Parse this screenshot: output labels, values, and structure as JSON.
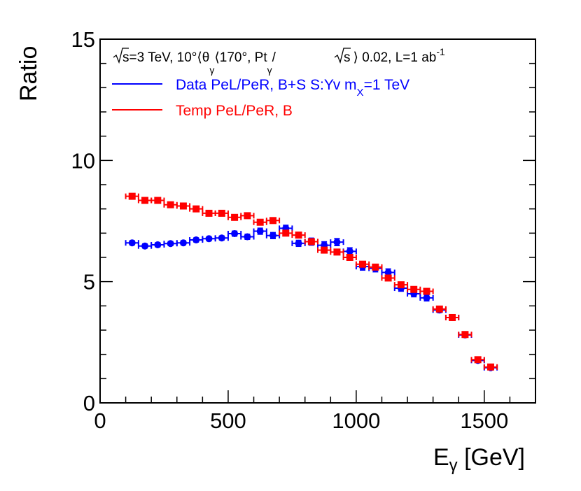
{
  "chart_data": {
    "type": "scatter",
    "xlabel_main": "E",
    "xlabel_sub": "γ",
    "xlabel_unit": " [GeV]",
    "ylabel": "Ratio",
    "xlim": [
      0,
      1700
    ],
    "ylim": [
      0,
      15
    ],
    "x_ticks": [
      {
        "value": 0,
        "label": "0"
      },
      {
        "value": 500,
        "label": "500"
      },
      {
        "value": 1000,
        "label": "1000"
      },
      {
        "value": 1500,
        "label": "1500"
      }
    ],
    "y_ticks": [
      {
        "value": 0,
        "label": "0"
      },
      {
        "value": 5,
        "label": "5"
      },
      {
        "value": 10,
        "label": "10"
      },
      {
        "value": 15,
        "label": "15"
      }
    ],
    "header": {
      "p1": "=3 TeV, 10°⟨θ",
      "p1_sub": "γ",
      "p2": "⟨170°,  Pt",
      "p2_sub": "γ",
      "p3": "/",
      "p4": "⟩ 0.02, L=1 ab",
      "p4_sup": "-1",
      "sqrt_s": "s"
    },
    "bin_half_width": 25,
    "series": [
      {
        "name": "Data PeL/PeR, B+S  S:Yv m",
        "name_sub": "X",
        "name_tail": "=1 TeV",
        "color": "#0000ff",
        "marker": "circle",
        "x": [
          125,
          175,
          225,
          275,
          325,
          375,
          425,
          475,
          525,
          575,
          625,
          675,
          725,
          775,
          825,
          875,
          925,
          975,
          1025,
          1075,
          1125,
          1175,
          1225,
          1275,
          1325,
          1375,
          1425,
          1475,
          1525
        ],
        "y": [
          6.6,
          6.47,
          6.52,
          6.57,
          6.6,
          6.72,
          6.77,
          6.8,
          6.98,
          6.85,
          7.08,
          6.9,
          7.2,
          6.58,
          6.65,
          6.5,
          6.63,
          6.25,
          5.62,
          5.55,
          5.38,
          4.73,
          4.5,
          4.33,
          3.83,
          3.52,
          2.8,
          1.75,
          1.45
        ],
        "yerr": [
          0.08,
          0.08,
          0.08,
          0.08,
          0.08,
          0.08,
          0.08,
          0.08,
          0.1,
          0.1,
          0.12,
          0.12,
          0.12,
          0.12,
          0.14,
          0.14,
          0.14,
          0.14,
          0.14,
          0.14,
          0.14,
          0.12,
          0.12,
          0.12,
          0.1,
          0.1,
          0.08,
          0.08,
          0.06
        ]
      },
      {
        "name": "Temp PeL/PeR, B",
        "color": "#ff0000",
        "marker": "square",
        "x": [
          125,
          175,
          225,
          275,
          325,
          375,
          425,
          475,
          525,
          575,
          625,
          675,
          725,
          775,
          825,
          875,
          925,
          975,
          1025,
          1075,
          1125,
          1175,
          1225,
          1275,
          1325,
          1375,
          1425,
          1475,
          1525
        ],
        "y": [
          8.52,
          8.35,
          8.35,
          8.17,
          8.12,
          8.0,
          7.82,
          7.82,
          7.65,
          7.72,
          7.45,
          7.52,
          7.0,
          6.92,
          6.65,
          6.3,
          6.22,
          6.0,
          5.72,
          5.6,
          5.15,
          4.87,
          4.68,
          4.6,
          3.87,
          3.52,
          2.82,
          1.78,
          1.48
        ]
      }
    ]
  }
}
